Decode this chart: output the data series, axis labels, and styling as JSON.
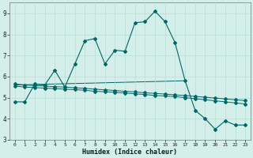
{
  "xlabel": "Humidex (Indice chaleur)",
  "bg_color": "#d4eeea",
  "grid_color": "#b8ddd8",
  "line_color": "#006666",
  "xlim": [
    -0.5,
    23.5
  ],
  "ylim": [
    3,
    9.5
  ],
  "xticks": [
    0,
    1,
    2,
    3,
    4,
    5,
    6,
    7,
    8,
    9,
    10,
    11,
    12,
    13,
    14,
    15,
    16,
    17,
    18,
    19,
    20,
    21,
    22,
    23
  ],
  "yticks": [
    3,
    4,
    5,
    6,
    7,
    8,
    9
  ],
  "series1_x": [
    0,
    1,
    2,
    3,
    4,
    5,
    6,
    7,
    8,
    9,
    10,
    11,
    12,
    13,
    14,
    15,
    16,
    17,
    18,
    19,
    20,
    21,
    22,
    23
  ],
  "series1_y": [
    4.8,
    4.8,
    5.65,
    5.6,
    6.3,
    5.5,
    6.6,
    7.7,
    7.8,
    6.6,
    7.25,
    7.2,
    8.55,
    8.6,
    9.1,
    8.6,
    7.6,
    5.8,
    4.4,
    4.0,
    3.5,
    3.9,
    3.7,
    3.7
  ],
  "series2_x": [
    0,
    1,
    2,
    3,
    4,
    5,
    6,
    7,
    8,
    9,
    10,
    11,
    12,
    13,
    14,
    15,
    16,
    17,
    18,
    19,
    20,
    21,
    22,
    23
  ],
  "series2_y": [
    5.55,
    5.5,
    5.48,
    5.45,
    5.43,
    5.4,
    5.38,
    5.35,
    5.3,
    5.28,
    5.25,
    5.22,
    5.18,
    5.15,
    5.1,
    5.08,
    5.05,
    5.0,
    4.95,
    4.9,
    4.85,
    4.8,
    4.75,
    4.7
  ],
  "series3_x": [
    0,
    1,
    2,
    3,
    4,
    5,
    6,
    7,
    8,
    9,
    10,
    11,
    12,
    13,
    14,
    15,
    16,
    17,
    18,
    19,
    20,
    21,
    22,
    23
  ],
  "series3_y": [
    5.65,
    5.6,
    5.57,
    5.55,
    5.52,
    5.5,
    5.47,
    5.44,
    5.4,
    5.37,
    5.34,
    5.3,
    5.27,
    5.23,
    5.2,
    5.17,
    5.13,
    5.1,
    5.06,
    5.02,
    4.98,
    4.94,
    4.9,
    4.86
  ],
  "series4_x": [
    0,
    17
  ],
  "series4_y": [
    5.6,
    5.8
  ]
}
